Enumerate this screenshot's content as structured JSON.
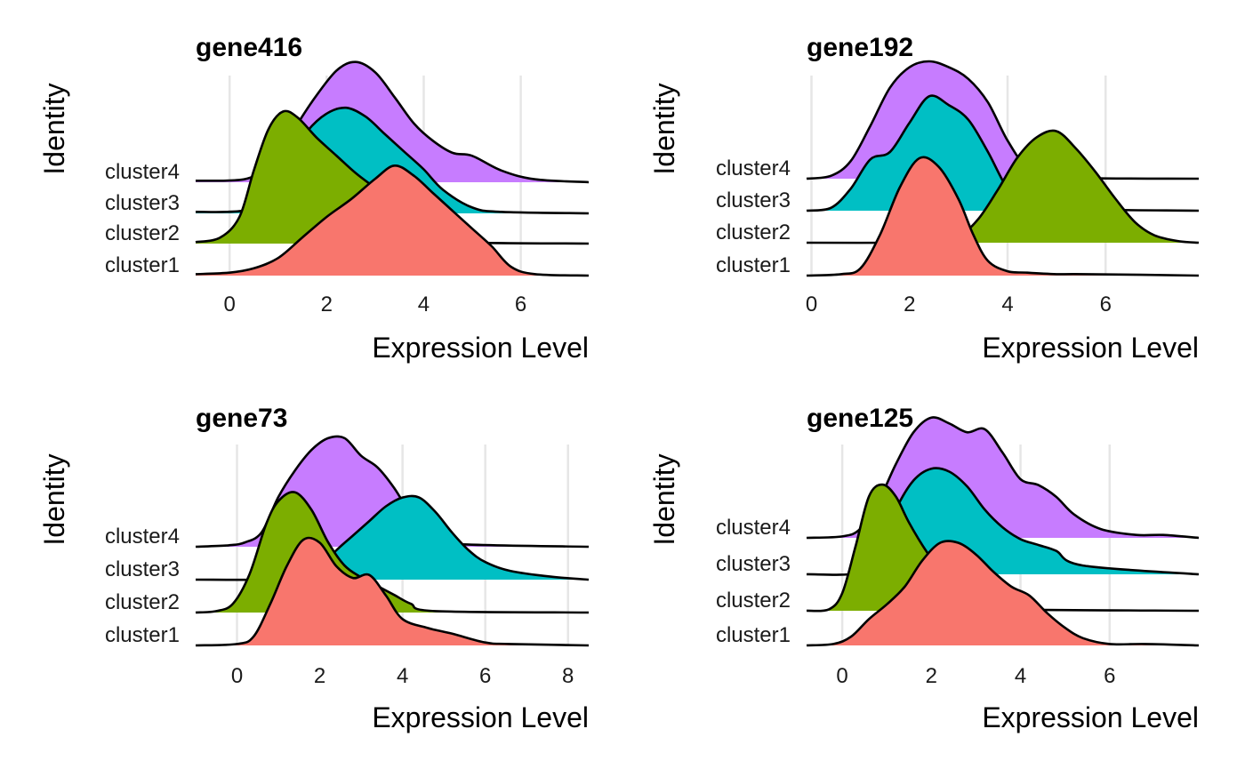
{
  "figure": {
    "ylabel": "Identity",
    "xlabel": "Expression Level",
    "categories": [
      "cluster1",
      "cluster2",
      "cluster3",
      "cluster4"
    ]
  },
  "colors": {
    "cluster1": "#F8766D",
    "cluster2": "#7CAE00",
    "cluster3": "#00BFC4",
    "cluster4": "#C77CFF"
  },
  "chart_data": [
    {
      "type": "ridgeline",
      "title": "gene416",
      "xlabel": "Expression Level",
      "ylabel": "Identity",
      "xlim": [
        -0.7,
        7.4
      ],
      "xticks": [
        0,
        2,
        4,
        6
      ],
      "grid": true,
      "series": [
        {
          "name": "cluster1",
          "x": [
            -0.7,
            0,
            0.5,
            1,
            1.5,
            2,
            2.5,
            3,
            3.4,
            3.8,
            4.2,
            4.6,
            5,
            5.4,
            5.8,
            6.3,
            7.4
          ],
          "density": [
            0.01,
            0.02,
            0.05,
            0.12,
            0.26,
            0.4,
            0.52,
            0.66,
            0.75,
            0.68,
            0.56,
            0.44,
            0.32,
            0.2,
            0.06,
            0.01,
            0
          ]
        },
        {
          "name": "cluster2",
          "x": [
            -0.7,
            -0.2,
            0.2,
            0.5,
            0.8,
            1.1,
            1.4,
            1.8,
            2.2,
            2.6,
            3,
            3.4,
            3.8,
            4.2,
            4.8,
            7.4
          ],
          "density": [
            0.01,
            0.04,
            0.18,
            0.5,
            0.78,
            0.9,
            0.86,
            0.72,
            0.6,
            0.48,
            0.38,
            0.28,
            0.16,
            0.06,
            0.01,
            0
          ]
        },
        {
          "name": "cluster3",
          "x": [
            -0.7,
            0.3,
            0.8,
            1.2,
            1.6,
            2,
            2.4,
            2.8,
            3.2,
            3.6,
            4,
            4.4,
            5,
            5.6,
            7.4
          ],
          "density": [
            0.01,
            0.02,
            0.12,
            0.36,
            0.56,
            0.68,
            0.72,
            0.66,
            0.54,
            0.42,
            0.3,
            0.16,
            0.04,
            0.01,
            0
          ]
        },
        {
          "name": "cluster4",
          "x": [
            -0.7,
            0.3,
            0.7,
            1.2,
            1.7,
            2.2,
            2.6,
            3,
            3.4,
            3.8,
            4.2,
            4.6,
            5,
            5.6,
            6.3,
            7.4
          ],
          "density": [
            0.01,
            0.02,
            0.1,
            0.3,
            0.55,
            0.76,
            0.82,
            0.75,
            0.58,
            0.4,
            0.28,
            0.2,
            0.18,
            0.08,
            0.02,
            0
          ]
        }
      ]
    },
    {
      "type": "ridgeline",
      "title": "gene192",
      "xlabel": "Expression Level",
      "ylabel": "Identity",
      "xlim": [
        -0.1,
        7.9
      ],
      "xticks": [
        0,
        2,
        4,
        6
      ],
      "grid": true,
      "series": [
        {
          "name": "cluster1",
          "x": [
            -0.1,
            0.6,
            1,
            1.4,
            1.8,
            2.2,
            2.6,
            3,
            3.3,
            3.6,
            4,
            4.4,
            5,
            5.6,
            7.9
          ],
          "density": [
            0,
            0.01,
            0.05,
            0.28,
            0.6,
            0.8,
            0.74,
            0.52,
            0.28,
            0.1,
            0.03,
            0.02,
            0.01,
            0.01,
            0
          ]
        },
        {
          "name": "cluster2",
          "x": [
            -0.1,
            2,
            2.6,
            3,
            3.4,
            3.8,
            4.2,
            4.6,
            5,
            5.4,
            5.8,
            6.2,
            6.6,
            7,
            7.5,
            7.9
          ],
          "density": [
            0,
            0,
            0.01,
            0.04,
            0.16,
            0.36,
            0.58,
            0.72,
            0.76,
            0.64,
            0.48,
            0.3,
            0.14,
            0.05,
            0.01,
            0
          ]
        },
        {
          "name": "cluster3",
          "x": [
            -0.1,
            0.4,
            0.8,
            1.2,
            1.6,
            2,
            2.4,
            2.8,
            3.2,
            3.6,
            4,
            4.4,
            5,
            7.9
          ],
          "density": [
            0,
            0.02,
            0.15,
            0.35,
            0.4,
            0.6,
            0.78,
            0.72,
            0.62,
            0.4,
            0.15,
            0.03,
            0.01,
            0
          ]
        },
        {
          "name": "cluster4",
          "x": [
            -0.1,
            0.4,
            0.8,
            1.2,
            1.6,
            2,
            2.4,
            2.8,
            3.2,
            3.6,
            4,
            4.4,
            5,
            7.9
          ],
          "density": [
            0,
            0.02,
            0.12,
            0.36,
            0.62,
            0.76,
            0.8,
            0.76,
            0.68,
            0.52,
            0.26,
            0.08,
            0.01,
            0
          ]
        }
      ]
    },
    {
      "type": "ridgeline",
      "title": "gene73",
      "xlabel": "Expression Level",
      "ylabel": "Identity",
      "xlim": [
        -1,
        8.5
      ],
      "xticks": [
        0,
        2,
        4,
        6,
        8
      ],
      "grid": true,
      "series": [
        {
          "name": "cluster1",
          "x": [
            -1,
            0,
            0.4,
            0.8,
            1.2,
            1.6,
            2,
            2.4,
            2.8,
            3.2,
            3.6,
            4,
            4.6,
            5.2,
            6,
            6.6,
            8.5
          ],
          "density": [
            0,
            0.01,
            0.06,
            0.28,
            0.54,
            0.72,
            0.7,
            0.54,
            0.46,
            0.48,
            0.34,
            0.18,
            0.12,
            0.08,
            0.02,
            0.01,
            0
          ]
        },
        {
          "name": "cluster2",
          "x": [
            -1,
            -0.5,
            -0.1,
            0.3,
            0.7,
            1,
            1.4,
            1.8,
            2.2,
            2.6,
            3,
            3.4,
            3.8,
            4.2,
            4.8,
            8.5
          ],
          "density": [
            0,
            0.01,
            0.06,
            0.26,
            0.6,
            0.76,
            0.82,
            0.7,
            0.48,
            0.32,
            0.24,
            0.18,
            0.12,
            0.06,
            0.01,
            0
          ]
        },
        {
          "name": "cluster3",
          "x": [
            -1,
            1,
            1.6,
            2,
            2.4,
            2.8,
            3.2,
            3.6,
            4,
            4.4,
            4.8,
            5.2,
            5.6,
            6,
            6.6,
            7.6,
            8.5
          ],
          "density": [
            0,
            0,
            0.02,
            0.08,
            0.2,
            0.3,
            0.4,
            0.5,
            0.56,
            0.56,
            0.46,
            0.32,
            0.2,
            0.12,
            0.06,
            0.02,
            0
          ]
        },
        {
          "name": "cluster4",
          "x": [
            -1,
            -0.2,
            0.2,
            0.6,
            1,
            1.4,
            1.8,
            2.2,
            2.6,
            3,
            3.4,
            3.8,
            4.2,
            4.6,
            5.2,
            8.5
          ],
          "density": [
            0,
            0.01,
            0.03,
            0.1,
            0.34,
            0.52,
            0.66,
            0.74,
            0.74,
            0.62,
            0.54,
            0.4,
            0.22,
            0.08,
            0.02,
            0
          ]
        }
      ]
    },
    {
      "type": "ridgeline",
      "title": "gene125",
      "xlabel": "Expression Level",
      "ylabel": "Identity",
      "xlim": [
        -0.8,
        8
      ],
      "xticks": [
        0,
        2,
        4,
        6
      ],
      "grid": true,
      "series": [
        {
          "name": "cluster1",
          "x": [
            -0.8,
            -0.2,
            0.2,
            0.6,
            1,
            1.4,
            1.8,
            2.2,
            2.6,
            3,
            3.4,
            3.8,
            4.2,
            4.6,
            5,
            5.4,
            6,
            6.8,
            8
          ],
          "density": [
            0,
            0.01,
            0.06,
            0.18,
            0.28,
            0.4,
            0.58,
            0.7,
            0.7,
            0.62,
            0.5,
            0.4,
            0.34,
            0.22,
            0.12,
            0.05,
            0.01,
            0.01,
            0
          ]
        },
        {
          "name": "cluster2",
          "x": [
            -0.8,
            -0.3,
            0,
            0.3,
            0.6,
            0.9,
            1.2,
            1.5,
            1.9,
            2.3,
            2.7,
            3.2,
            3.8,
            8
          ],
          "density": [
            0,
            0.01,
            0.12,
            0.44,
            0.78,
            0.86,
            0.78,
            0.6,
            0.4,
            0.24,
            0.12,
            0.04,
            0.01,
            0
          ]
        },
        {
          "name": "cluster3",
          "x": [
            -0.8,
            0.4,
            0.8,
            1.2,
            1.6,
            2,
            2.4,
            2.8,
            3.2,
            3.6,
            4,
            4.4,
            4.8,
            5.4,
            8
          ],
          "density": [
            0,
            0.01,
            0.14,
            0.44,
            0.64,
            0.72,
            0.7,
            0.6,
            0.44,
            0.32,
            0.24,
            0.2,
            0.16,
            0.06,
            0
          ]
        },
        {
          "name": "cluster4",
          "x": [
            -0.8,
            0,
            0.4,
            0.8,
            1.2,
            1.6,
            2,
            2.4,
            2.8,
            3.2,
            3.6,
            4,
            4.4,
            4.8,
            5.2,
            5.8,
            6.6,
            7.2,
            8
          ],
          "density": [
            0,
            0.01,
            0.06,
            0.24,
            0.5,
            0.72,
            0.82,
            0.78,
            0.72,
            0.74,
            0.58,
            0.4,
            0.36,
            0.28,
            0.16,
            0.06,
            0.02,
            0.02,
            0
          ]
        }
      ]
    }
  ]
}
